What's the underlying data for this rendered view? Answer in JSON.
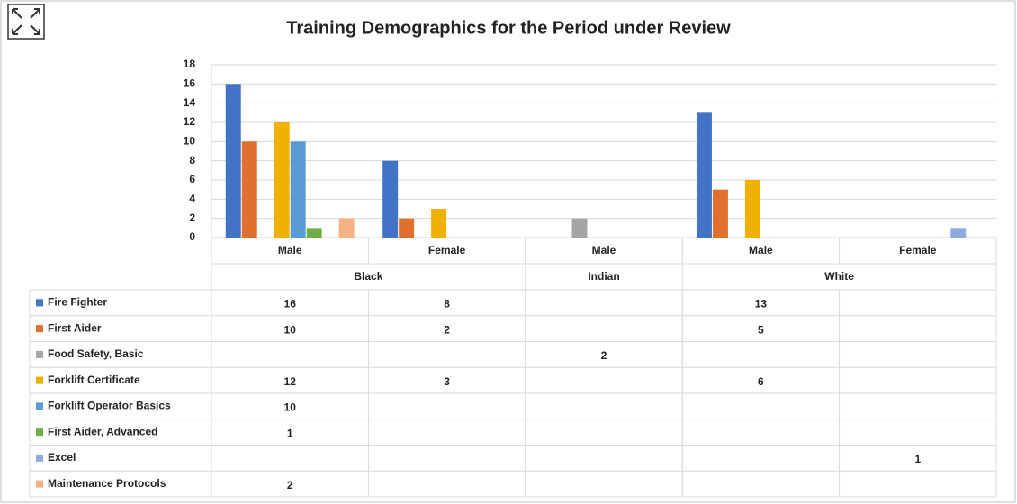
{
  "chart_data": {
    "type": "bar",
    "title": "Training Demographics for the Period under Review",
    "groups": [
      {
        "name": "Black",
        "categories": [
          "Male",
          "Female"
        ]
      },
      {
        "name": "Indian",
        "categories": [
          "Male"
        ]
      },
      {
        "name": "White",
        "categories": [
          "Male",
          "Female"
        ]
      }
    ],
    "series": [
      {
        "name": "Fire Fighter",
        "color": "#4472c4",
        "values": [
          16,
          8,
          null,
          13,
          null
        ]
      },
      {
        "name": "First Aider",
        "color": "#e0702e",
        "values": [
          10,
          2,
          null,
          5,
          null
        ]
      },
      {
        "name": "Food Safety, Basic",
        "color": "#a5a5a5",
        "values": [
          null,
          null,
          2,
          null,
          null
        ]
      },
      {
        "name": "Forklift Certificate",
        "color": "#f0b000",
        "values": [
          12,
          3,
          null,
          6,
          null
        ]
      },
      {
        "name": "Forklift Operator Basics",
        "color": "#5b9bd5",
        "values": [
          10,
          null,
          null,
          null,
          null
        ]
      },
      {
        "name": "First Aider, Advanced",
        "color": "#70ad47",
        "values": [
          1,
          null,
          null,
          null,
          null
        ]
      },
      {
        "name": "Excel",
        "color": "#8faadc",
        "values": [
          null,
          null,
          null,
          null,
          1
        ]
      },
      {
        "name": "Maintenance Protocols",
        "color": "#f4b183",
        "values": [
          2,
          null,
          null,
          null,
          null
        ]
      }
    ],
    "ylim": [
      0,
      18
    ],
    "yticks": [
      0,
      2,
      4,
      6,
      8,
      10,
      12,
      14,
      16,
      18
    ],
    "grid": true,
    "data_table": true
  }
}
